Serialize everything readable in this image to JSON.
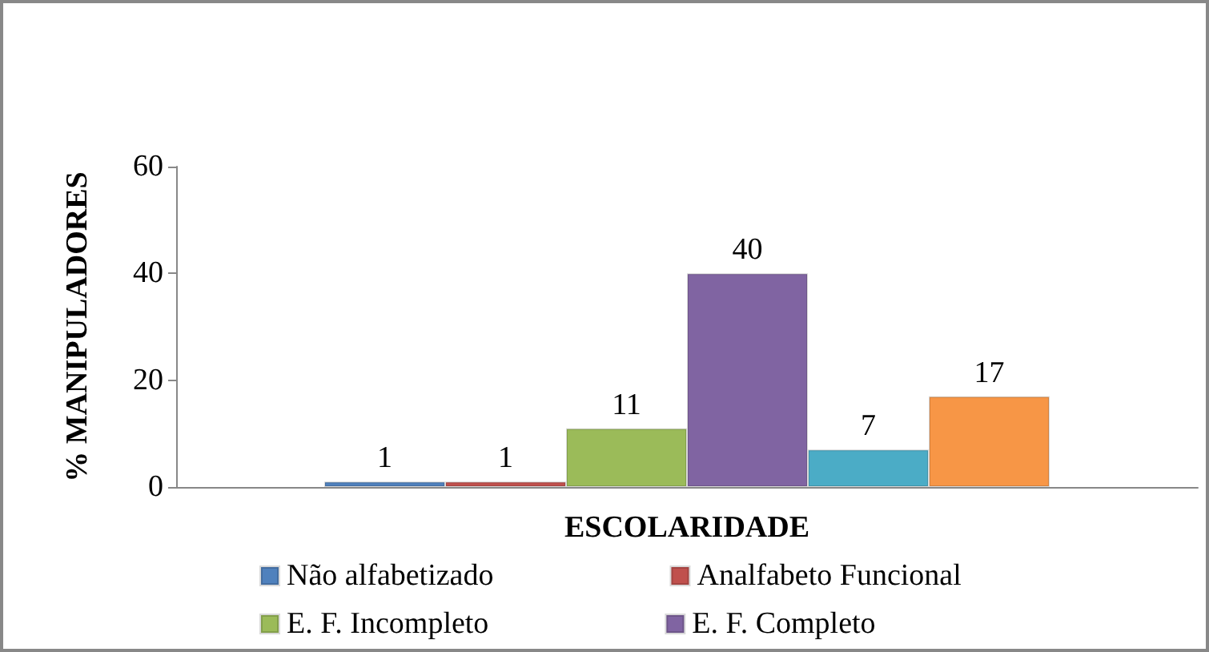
{
  "chart_data": {
    "type": "bar",
    "xlabel": "ESCOLARIDADE",
    "ylabel": "% MANIPULADORES",
    "categories": [
      null
    ],
    "series": [
      {
        "name": "Não alfabetizado",
        "color": "#4f81bd",
        "values": [
          1
        ]
      },
      {
        "name": "Analfabeto Funcional",
        "color": "#c0504d",
        "values": [
          1
        ]
      },
      {
        "name": "E. F. Incompleto",
        "color": "#9bbb59",
        "values": [
          11
        ]
      },
      {
        "name": "E. F. Completo",
        "color": "#8064a2",
        "values": [
          40
        ]
      },
      {
        "color": "#4bacc6",
        "values": [
          7
        ]
      },
      {
        "color": "#f79646",
        "values": [
          17
        ]
      }
    ],
    "ylim": [
      0,
      60
    ],
    "yticks": [
      0,
      20,
      40,
      60
    ],
    "data_labels": true,
    "grid": false,
    "legend": "bottom"
  }
}
